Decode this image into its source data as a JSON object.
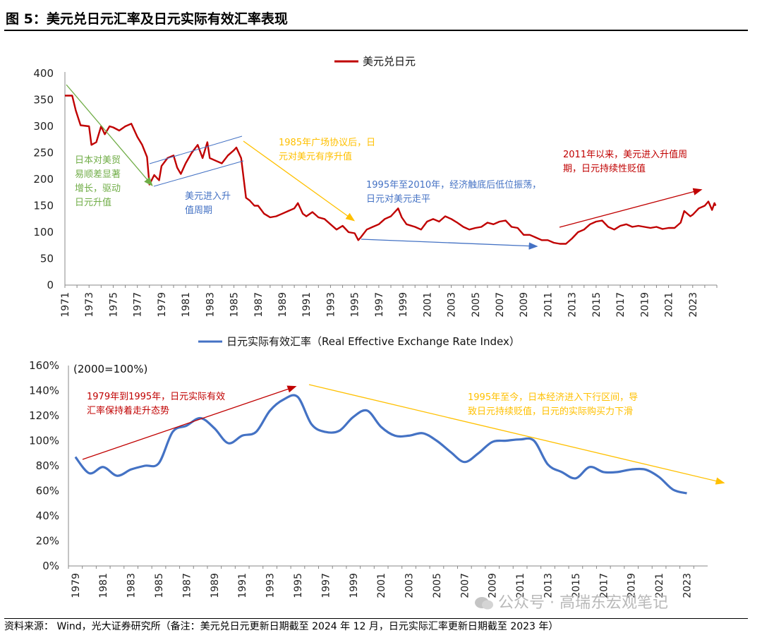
{
  "header": {
    "title": "图 5：美元兑日元汇率及日元实际有效汇率表现"
  },
  "footer": {
    "source": "资料来源：  Wind，光大证券研究所（备注：美元兑日元更新日期截至 2024 年 12 月，日元实际汇率更新日期截至 2023 年）"
  },
  "watermark": {
    "text": "公众号 · 高瑞东宏观笔记"
  },
  "colors": {
    "usdjpy": "#c00000",
    "reer": "#4472c4",
    "green": "#70ad47",
    "blue_arrow": "#4472c4",
    "yellow": "#ffc000",
    "red": "#c00000"
  },
  "chart_data": [
    {
      "type": "line",
      "legend": [
        "美元兑日元"
      ],
      "ylim": [
        0,
        400
      ],
      "yticks": [
        "0",
        "50",
        "100",
        "150",
        "200",
        "250",
        "300",
        "350",
        "400"
      ],
      "xticks": [
        "1971",
        "1973",
        "1975",
        "1977",
        "1979",
        "1981",
        "1983",
        "1985",
        "1987",
        "1989",
        "1991",
        "1993",
        "1995",
        "1997",
        "1999",
        "2001",
        "2003",
        "2005",
        "2007",
        "2009",
        "2011",
        "2013",
        "2015",
        "2017",
        "2019",
        "2021",
        "2023"
      ],
      "series": [
        {
          "name": "美元兑日元",
          "x": [
            1971.0,
            1971.6,
            1971.9,
            1972.3,
            1973.0,
            1973.2,
            1973.6,
            1974.0,
            1974.3,
            1974.7,
            1975.0,
            1975.5,
            1976.0,
            1976.5,
            1977.0,
            1977.4,
            1977.8,
            1978.0,
            1978.4,
            1978.8,
            1979.0,
            1979.5,
            1980.0,
            1980.3,
            1980.6,
            1981.0,
            1981.5,
            1982.0,
            1982.4,
            1982.8,
            1983.0,
            1983.5,
            1984.0,
            1984.5,
            1985.0,
            1985.2,
            1985.6,
            1986.0,
            1986.3,
            1986.7,
            1987.0,
            1987.5,
            1988.0,
            1988.5,
            1989.0,
            1989.5,
            1990.0,
            1990.3,
            1990.7,
            1991.0,
            1991.5,
            1992.0,
            1992.5,
            1993.0,
            1993.5,
            1994.0,
            1994.5,
            1995.0,
            1995.3,
            1995.5,
            1996.0,
            1996.5,
            1997.0,
            1997.5,
            1998.0,
            1998.6,
            1998.9,
            1999.3,
            2000.0,
            2000.5,
            2001.0,
            2001.5,
            2002.0,
            2002.5,
            2003.0,
            2003.5,
            2004.0,
            2004.5,
            2005.0,
            2005.5,
            2006.0,
            2006.5,
            2007.0,
            2007.5,
            2008.0,
            2008.5,
            2009.0,
            2009.5,
            2010.0,
            2010.5,
            2011.0,
            2011.5,
            2012.0,
            2012.5,
            2013.0,
            2013.5,
            2014.0,
            2014.5,
            2015.0,
            2015.5,
            2016.0,
            2016.5,
            2017.0,
            2017.5,
            2018.0,
            2018.5,
            2019.0,
            2019.5,
            2020.0,
            2020.5,
            2021.0,
            2021.5,
            2022.0,
            2022.3,
            2022.8,
            2023.0,
            2023.5,
            2024.0,
            2024.3,
            2024.6,
            2024.8,
            2024.9
          ],
          "values": [
            358,
            358,
            330,
            302,
            300,
            265,
            270,
            300,
            285,
            300,
            298,
            292,
            300,
            305,
            280,
            265,
            242,
            190,
            208,
            198,
            225,
            240,
            245,
            222,
            210,
            230,
            250,
            265,
            240,
            270,
            240,
            235,
            230,
            245,
            255,
            260,
            240,
            165,
            160,
            150,
            150,
            135,
            128,
            130,
            135,
            140,
            145,
            155,
            135,
            130,
            138,
            128,
            125,
            115,
            105,
            112,
            100,
            98,
            85,
            90,
            105,
            110,
            115,
            125,
            130,
            145,
            128,
            115,
            110,
            105,
            120,
            125,
            120,
            130,
            125,
            118,
            110,
            105,
            108,
            110,
            118,
            115,
            120,
            122,
            110,
            108,
            95,
            95,
            90,
            85,
            85,
            80,
            78,
            78,
            88,
            100,
            105,
            115,
            120,
            122,
            110,
            105,
            112,
            115,
            110,
            112,
            110,
            108,
            110,
            106,
            108,
            108,
            118,
            140,
            130,
            133,
            145,
            150,
            158,
            142,
            155,
            150
          ],
          "color": "#c00000"
        }
      ]
    },
    {
      "type": "line",
      "legend": [
        "日元实际有效汇率（Real Effective Exchange Rate Index）"
      ],
      "unit_note": "(2000=100%)",
      "ylim": [
        0,
        160
      ],
      "yticks": [
        "0%",
        "20%",
        "40%",
        "60%",
        "80%",
        "100%",
        "120%",
        "140%",
        "160%"
      ],
      "xticks": [
        "1979",
        "1981",
        "1983",
        "1985",
        "1987",
        "1989",
        "1991",
        "1993",
        "1995",
        "1997",
        "1999",
        "2001",
        "2003",
        "2005",
        "2007",
        "2009",
        "2011",
        "2013",
        "2015",
        "2017",
        "2019",
        "2021",
        "2023"
      ],
      "series": [
        {
          "name": "日元实际有效汇率（Real Effective Exchange Rate Index）",
          "x": [
            1979,
            1980,
            1981,
            1982,
            1983,
            1984,
            1985,
            1986,
            1987,
            1988,
            1989,
            1990,
            1991,
            1992,
            1993,
            1994,
            1995,
            1996,
            1997,
            1998,
            1999,
            2000,
            2001,
            2002,
            2003,
            2004,
            2005,
            2006,
            2007,
            2008,
            2009,
            2010,
            2011,
            2012,
            2013,
            2014,
            2015,
            2016,
            2017,
            2018,
            2019,
            2020,
            2021,
            2022,
            2023
          ],
          "values": [
            87,
            74,
            79,
            72,
            77,
            80,
            82,
            107,
            112,
            118,
            110,
            98,
            104,
            107,
            124,
            133,
            135,
            113,
            107,
            108,
            119,
            124,
            111,
            104,
            104,
            106,
            100,
            91,
            83,
            90,
            99,
            100,
            101,
            100,
            81,
            75,
            70,
            79,
            75,
            75,
            77,
            77,
            71,
            61,
            58
          ],
          "color": "#4472c4"
        }
      ]
    }
  ],
  "annotations": {
    "a1": [
      "日本对美贸",
      "易顺差显著",
      "增长，驱动",
      "日元升值"
    ],
    "a2": [
      "美元进入升",
      "值周期"
    ],
    "a3": [
      "1985年广场协议后，日",
      "元对美元有序升值"
    ],
    "a4": [
      "1995年至2010年，经济触底后低位振荡，",
      "日元对美元走平"
    ],
    "a5": [
      "2011年以来，美元进入升值周",
      "期，日元持续性贬值"
    ],
    "b1": [
      "1979年到1995年，日元实际有效",
      "汇率保持着走升态势"
    ],
    "b2": [
      "1995年至今，日本经济进入下行区间，导",
      "致日元持续贬值，日元的实际购买力下滑"
    ]
  }
}
